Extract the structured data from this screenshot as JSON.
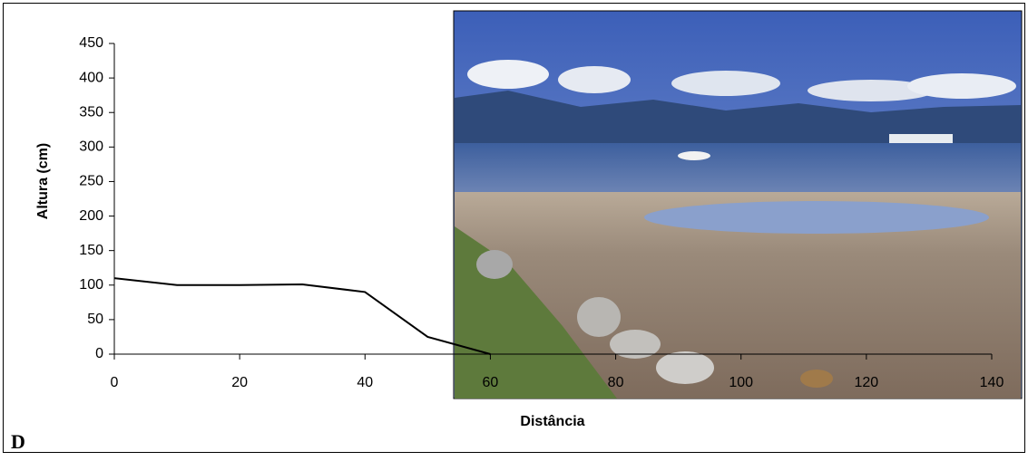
{
  "chart_data": {
    "type": "line",
    "panel_label": "D",
    "x_label": "Distância",
    "y_label": "Altura (cm)",
    "x": [
      0,
      10,
      20,
      30,
      40,
      50,
      60
    ],
    "series": [
      {
        "color": "#000000",
        "values": [
          110,
          100,
          100,
          101,
          90,
          25,
          0
        ]
      }
    ],
    "xlim": [
      0,
      140
    ],
    "xticks": [
      0,
      20,
      40,
      60,
      80,
      100,
      120,
      140
    ],
    "ylim": [
      0,
      450
    ],
    "yticks": [
      0,
      50,
      100,
      150,
      200,
      250,
      300,
      350,
      400,
      450
    ],
    "grid": false
  }
}
